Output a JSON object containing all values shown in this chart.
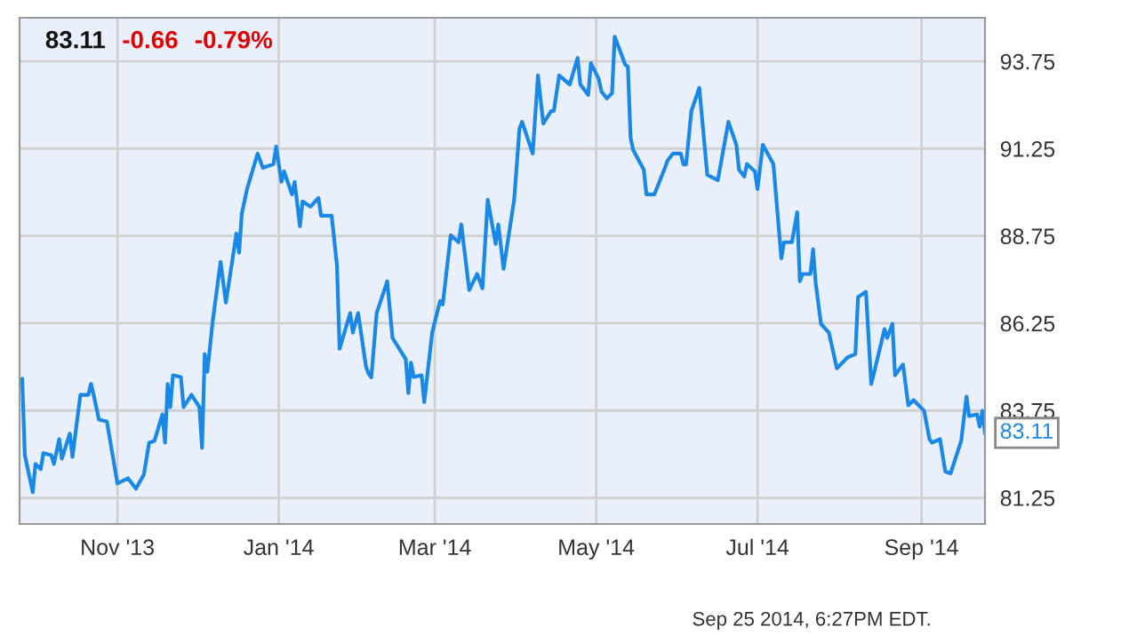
{
  "chart_data": {
    "type": "line",
    "annotations": [
      "83.11",
      "-0.66",
      "-0.79%",
      {
        "text": "83.11",
        "x": "2014-09-25",
        "y": 83.11
      },
      "Sep 25 2014, 6:27PM EDT."
    ],
    "xlim": [
      "2013-09-25",
      "2014-09-25"
    ],
    "ylim": [
      80.5,
      95.0
    ],
    "xticks": [
      {
        "value": "2013-11-01",
        "label": "Nov '13"
      },
      {
        "value": "2014-01-01",
        "label": "Jan '14"
      },
      {
        "value": "2014-03-01",
        "label": "Mar '14"
      },
      {
        "value": "2014-05-01",
        "label": "May '14"
      },
      {
        "value": "2014-07-01",
        "label": "Jul '14"
      },
      {
        "value": "2014-09-01",
        "label": "Sep '14"
      }
    ],
    "yticks": [
      81.25,
      83.75,
      86.25,
      88.75,
      91.25,
      93.75
    ],
    "grid": true,
    "legend": false,
    "marker": "none",
    "line_style": "solid",
    "series": [
      {
        "color": "#1a88e6",
        "x": [
          "2013-09-25",
          "2013-09-26",
          "2013-09-27",
          "2013-09-30",
          "2013-10-01",
          "2013-10-03",
          "2013-10-04",
          "2013-10-07",
          "2013-10-08",
          "2013-10-10",
          "2013-10-11",
          "2013-10-14",
          "2013-10-15",
          "2013-10-18",
          "2013-10-21",
          "2013-10-22",
          "2013-10-23",
          "2013-10-25",
          "2013-10-28",
          "2013-11-01",
          "2013-11-05",
          "2013-11-08",
          "2013-11-11",
          "2013-11-13",
          "2013-11-15",
          "2013-11-18",
          "2013-11-19",
          "2013-11-20",
          "2013-11-21",
          "2013-11-22",
          "2013-11-25",
          "2013-11-26",
          "2013-11-29",
          "2013-12-02",
          "2013-12-03",
          "2013-12-04",
          "2013-12-05",
          "2013-12-07",
          "2013-12-10",
          "2013-12-12",
          "2013-12-16",
          "2013-12-17",
          "2013-12-18",
          "2013-12-20",
          "2013-12-24",
          "2013-12-26",
          "2013-12-30",
          "2013-12-31",
          "2014-01-02",
          "2014-01-03",
          "2014-01-06",
          "2014-01-07",
          "2014-01-09",
          "2014-01-10",
          "2014-01-13",
          "2014-01-16",
          "2014-01-17",
          "2014-01-21",
          "2014-01-23",
          "2014-01-24",
          "2014-01-28",
          "2014-01-29",
          "2014-01-31",
          "2014-02-03",
          "2014-02-04",
          "2014-02-05",
          "2014-02-07",
          "2014-02-11",
          "2014-02-13",
          "2014-02-18",
          "2014-02-19",
          "2014-02-20",
          "2014-02-21",
          "2014-02-24",
          "2014-02-25",
          "2014-02-28",
          "2014-03-03",
          "2014-03-04",
          "2014-03-07",
          "2014-03-10",
          "2014-03-11",
          "2014-03-14",
          "2014-03-17",
          "2014-03-19",
          "2014-03-21",
          "2014-03-24",
          "2014-03-25",
          "2014-03-27",
          "2014-03-31",
          "2014-04-02",
          "2014-04-03",
          "2014-04-07",
          "2014-04-09",
          "2014-04-11",
          "2014-04-14",
          "2014-04-15",
          "2014-04-17",
          "2014-04-21",
          "2014-04-24",
          "2014-04-25",
          "2014-04-28",
          "2014-04-29",
          "2014-05-02",
          "2014-05-03",
          "2014-05-05",
          "2014-05-07",
          "2014-05-08",
          "2014-05-09",
          "2014-05-12",
          "2014-05-13",
          "2014-05-14",
          "2014-05-15",
          "2014-05-19",
          "2014-05-20",
          "2014-05-23",
          "2014-05-27",
          "2014-05-28",
          "2014-05-30",
          "2014-06-02",
          "2014-06-03",
          "2014-06-04",
          "2014-06-06",
          "2014-06-09",
          "2014-06-12",
          "2014-06-16",
          "2014-06-20",
          "2014-06-23",
          "2014-06-24",
          "2014-06-26",
          "2014-06-27",
          "2014-06-30",
          "2014-07-01",
          "2014-07-03",
          "2014-07-07",
          "2014-07-10",
          "2014-07-11",
          "2014-07-14",
          "2014-07-16",
          "2014-07-17",
          "2014-07-18",
          "2014-07-21",
          "2014-07-22",
          "2014-07-23",
          "2014-07-25",
          "2014-07-28",
          "2014-07-31",
          "2014-08-04",
          "2014-08-07",
          "2014-08-08",
          "2014-08-11",
          "2014-08-13",
          "2014-08-14",
          "2014-08-18",
          "2014-08-19",
          "2014-08-21",
          "2014-08-22",
          "2014-08-25",
          "2014-08-27",
          "2014-08-29",
          "2014-09-02",
          "2014-09-04",
          "2014-09-05",
          "2014-09-08",
          "2014-09-10",
          "2014-09-12",
          "2014-09-16",
          "2014-09-18",
          "2014-09-19",
          "2014-09-22",
          "2014-09-23",
          "2014-09-24",
          "2014-09-25"
        ],
        "values": [
          84.61,
          84.66,
          82.47,
          81.41,
          82.22,
          82.07,
          82.53,
          82.47,
          82.22,
          82.93,
          82.37,
          83.09,
          82.42,
          84.2,
          84.2,
          84.51,
          84.2,
          83.49,
          83.44,
          81.66,
          81.81,
          81.51,
          81.92,
          82.83,
          82.88,
          83.64,
          82.83,
          84.51,
          83.85,
          84.76,
          84.71,
          83.85,
          84.2,
          83.85,
          82.68,
          85.37,
          84.86,
          86.29,
          88.01,
          86.84,
          88.82,
          88.27,
          89.38,
          90.09,
          91.11,
          90.7,
          90.81,
          91.31,
          90.3,
          90.6,
          89.94,
          90.3,
          89.03,
          89.74,
          89.59,
          89.84,
          89.33,
          89.33,
          87.91,
          85.52,
          86.54,
          85.98,
          86.54,
          85.0,
          84.8,
          84.7,
          86.54,
          87.45,
          85.83,
          85.22,
          84.25,
          85.12,
          84.71,
          84.76,
          83.99,
          85.98,
          86.89,
          86.79,
          88.77,
          88.57,
          89.08,
          87.2,
          87.66,
          87.25,
          89.79,
          88.52,
          89.08,
          87.81,
          89.79,
          91.82,
          92.02,
          91.11,
          93.35,
          91.97,
          92.33,
          92.33,
          93.35,
          93.09,
          93.85,
          93.09,
          92.79,
          93.7,
          93.24,
          92.89,
          92.69,
          92.84,
          94.46,
          94.26,
          93.65,
          93.6,
          91.57,
          91.21,
          90.65,
          89.94,
          89.94,
          90.7,
          90.91,
          91.11,
          91.11,
          90.8,
          90.8,
          92.33,
          92.99,
          90.5,
          90.35,
          92.02,
          91.36,
          90.65,
          90.45,
          90.81,
          90.6,
          90.09,
          91.36,
          90.81,
          88.11,
          88.57,
          88.57,
          89.43,
          87.45,
          87.66,
          87.66,
          88.37,
          87.4,
          86.23,
          85.98,
          84.96,
          85.27,
          85.37,
          87.0,
          87.15,
          84.51,
          84.81,
          86.08,
          85.83,
          86.23,
          84.76,
          85.07,
          83.9,
          84.05,
          83.74,
          82.93,
          82.83,
          82.93,
          82.0,
          81.95,
          82.88,
          84.15,
          83.59,
          83.64,
          83.29,
          83.74,
          83.11
        ]
      }
    ]
  }
}
